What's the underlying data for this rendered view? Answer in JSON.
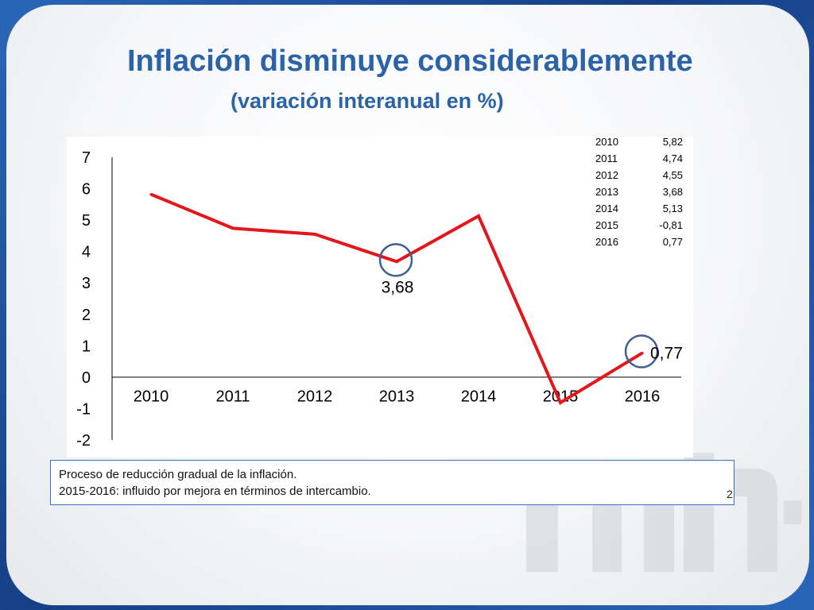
{
  "slide": {
    "title": "Inflación disminuye considerablemente",
    "subtitle": "(variación interanual en %)",
    "page_number": "2"
  },
  "note": {
    "line1": "Proceso de reducción gradual de la inflación.",
    "line2": "2015-2016: influido por mejora en términos de intercambio."
  },
  "chart_data": {
    "type": "line",
    "title": "Inflación disminuye considerablemente",
    "subtitle": "(variación interanual en %)",
    "categories": [
      "2010",
      "2011",
      "2012",
      "2013",
      "2014",
      "2015",
      "2016"
    ],
    "series": [
      {
        "values": [
          5.82,
          4.74,
          4.55,
          3.68,
          5.13,
          -0.81,
          0.77
        ]
      }
    ],
    "y_ticks": [
      "7",
      "6",
      "5",
      "4",
      "3",
      "2",
      "1",
      "0",
      "-1",
      "-2"
    ],
    "ylim": [
      -2,
      7
    ],
    "grid": false,
    "line_color": "#e3161b",
    "highlight_color": "#3f5f8f",
    "annotations": [
      {
        "category": "2013",
        "label": "3,68"
      },
      {
        "category": "2016",
        "label": "0,77"
      }
    ],
    "data_table": [
      {
        "year": "2010",
        "value": "5,82"
      },
      {
        "year": "2011",
        "value": "4,74"
      },
      {
        "year": "2012",
        "value": "4,55"
      },
      {
        "year": "2013",
        "value": "3,68"
      },
      {
        "year": "2014",
        "value": "5,13"
      },
      {
        "year": "2015",
        "value": "-0,81"
      },
      {
        "year": "2016",
        "value": "0,77"
      }
    ]
  }
}
